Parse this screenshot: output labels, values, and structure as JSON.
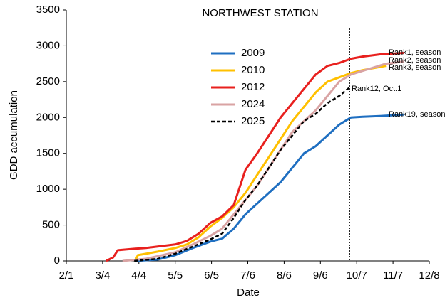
{
  "chart_data": {
    "type": "line",
    "title": "NORTHWEST STATION",
    "x_label": "Date",
    "y_label": "GDD accumulation",
    "xlim": [
      32,
      342
    ],
    "xticks": [
      {
        "value": 32,
        "label": "2/1"
      },
      {
        "value": 63,
        "label": "3/4"
      },
      {
        "value": 94,
        "label": "4/4"
      },
      {
        "value": 125,
        "label": "5/5"
      },
      {
        "value": 156,
        "label": "6/5"
      },
      {
        "value": 187,
        "label": "7/6"
      },
      {
        "value": 218,
        "label": "8/6"
      },
      {
        "value": 249,
        "label": "9/6"
      },
      {
        "value": 280,
        "label": "10/7"
      },
      {
        "value": 311,
        "label": "11/7"
      },
      {
        "value": 342,
        "label": "12/8"
      }
    ],
    "ylim": [
      0,
      3500
    ],
    "yticks": [
      0,
      500,
      1000,
      1500,
      2000,
      2500,
      3000,
      3500
    ],
    "legend": "upper center",
    "grid": false,
    "vline": 274,
    "series": [
      {
        "name": "2009",
        "color": "#1f6fc1",
        "dash": false,
        "x": [
          91,
          110,
          125,
          140,
          155,
          165,
          175,
          185,
          195,
          205,
          215,
          225,
          235,
          245,
          255,
          265,
          275,
          285,
          300,
          320
        ],
        "values": [
          0,
          20,
          80,
          180,
          270,
          310,
          450,
          650,
          800,
          950,
          1100,
          1300,
          1500,
          1600,
          1750,
          1900,
          2000,
          2010,
          2020,
          2040
        ]
      },
      {
        "name": "2010",
        "color": "#ffc000",
        "dash": false,
        "x": [
          91,
          93,
          100,
          110,
          125,
          135,
          145,
          155,
          165,
          175,
          185,
          195,
          205,
          215,
          225,
          235,
          245,
          255,
          265,
          275,
          285,
          295,
          305
        ],
        "values": [
          0,
          80,
          100,
          130,
          180,
          230,
          330,
          480,
          600,
          750,
          950,
          1200,
          1450,
          1700,
          1950,
          2150,
          2350,
          2500,
          2560,
          2620,
          2660,
          2690,
          2720
        ]
      },
      {
        "name": "2012",
        "color": "#e8201e",
        "dash": false,
        "x": [
          66,
          72,
          76,
          90,
          100,
          110,
          125,
          135,
          145,
          155,
          165,
          175,
          185,
          195,
          205,
          215,
          225,
          235,
          245,
          255,
          265,
          275,
          285,
          300,
          320
        ],
        "values": [
          0,
          50,
          150,
          170,
          180,
          200,
          230,
          280,
          380,
          530,
          620,
          780,
          1270,
          1500,
          1750,
          2000,
          2200,
          2400,
          2600,
          2720,
          2760,
          2820,
          2850,
          2880,
          2900
        ]
      },
      {
        "name": "2024",
        "color": "#d9a3a3",
        "dash": false,
        "x": [
          80,
          100,
          125,
          140,
          155,
          165,
          175,
          185,
          195,
          205,
          215,
          225,
          235,
          245,
          255,
          265,
          275,
          285,
          295,
          305,
          320
        ],
        "values": [
          0,
          30,
          120,
          230,
          350,
          450,
          650,
          850,
          1050,
          1300,
          1550,
          1800,
          1950,
          2100,
          2300,
          2500,
          2600,
          2650,
          2700,
          2750,
          2780
        ]
      },
      {
        "name": "2025",
        "color": "#000000",
        "dash": true,
        "x": [
          90,
          110,
          125,
          140,
          155,
          165,
          175,
          185,
          195,
          205,
          215,
          225,
          235,
          245,
          255,
          265,
          274
        ],
        "values": [
          0,
          30,
          100,
          200,
          300,
          380,
          600,
          850,
          1050,
          1300,
          1550,
          1750,
          1950,
          2050,
          2200,
          2300,
          2420
        ]
      }
    ],
    "annotations": [
      "Rank1, season",
      "Rank2, season",
      "Rank3, season",
      "Rank12, Oct.1",
      "Rank19, season"
    ]
  }
}
